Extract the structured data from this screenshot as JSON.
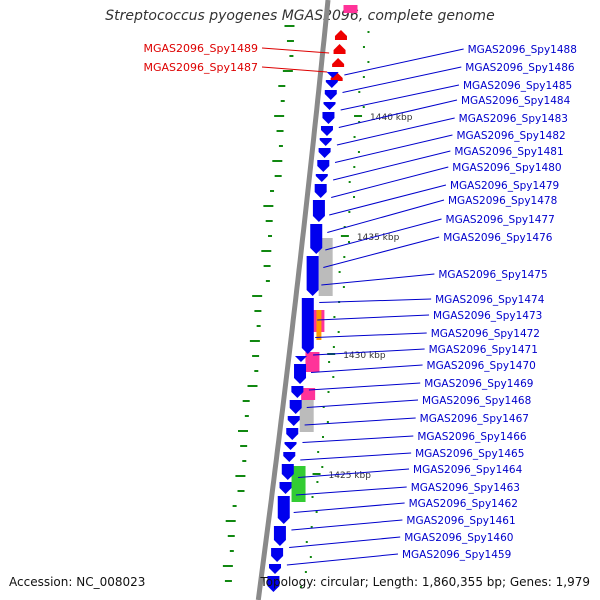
{
  "title": "Streptococcus pyogenes MGAS2096, complete genome",
  "accession_text": "Accession: NC_008023",
  "topology_text": "Topology: circular; Length: 1,860,355 bp; Genes: 1,979",
  "colors": {
    "forward_cds": "#ee0000",
    "reverse_cds": "#0000ee",
    "label_forward": "#dd0000",
    "label_reverse": "#0000cc",
    "backbone": "#8a8a8a",
    "gc_skew": "#118811",
    "cog_pink": "#ff3399",
    "cog_grey": "#bbbbbb",
    "cog_orange": "#ff9900",
    "cog_green": "#33cc33"
  },
  "ticks": [
    {
      "label": "1440 kbp"
    },
    {
      "label": "1435 kbp"
    },
    {
      "label": "1430 kbp"
    },
    {
      "label": "1425 kbp"
    }
  ],
  "left_labels": [
    {
      "text": "MGAS2096_Spy1489"
    },
    {
      "text": "MGAS2096_Spy1487"
    }
  ],
  "right_labels": [
    {
      "text": "MGAS2096_Spy1488"
    },
    {
      "text": "MGAS2096_Spy1486"
    },
    {
      "text": "MGAS2096_Spy1485"
    },
    {
      "text": "MGAS2096_Spy1484"
    },
    {
      "text": "MGAS2096_Spy1483"
    },
    {
      "text": "MGAS2096_Spy1482"
    },
    {
      "text": "MGAS2096_Spy1481"
    },
    {
      "text": "MGAS2096_Spy1480"
    },
    {
      "text": "MGAS2096_Spy1479"
    },
    {
      "text": "MGAS2096_Spy1478"
    },
    {
      "text": "MGAS2096_Spy1477"
    },
    {
      "text": "MGAS2096_Spy1476"
    },
    {
      "text": "MGAS2096_Spy1475"
    },
    {
      "text": "MGAS2096_Spy1474"
    },
    {
      "text": "MGAS2096_Spy1473"
    },
    {
      "text": "MGAS2096_Spy1472"
    },
    {
      "text": "MGAS2096_Spy1471"
    },
    {
      "text": "MGAS2096_Spy1470"
    },
    {
      "text": "MGAS2096_Spy1469"
    },
    {
      "text": "MGAS2096_Spy1468"
    },
    {
      "text": "MGAS2096_Spy1467"
    },
    {
      "text": "MGAS2096_Spy1466"
    },
    {
      "text": "MGAS2096_Spy1465"
    },
    {
      "text": "MGAS2096_Spy1464"
    },
    {
      "text": "MGAS2096_Spy1463"
    },
    {
      "text": "MGAS2096_Spy1462"
    },
    {
      "text": "MGAS2096_Spy1461"
    },
    {
      "text": "MGAS2096_Spy1460"
    },
    {
      "text": "MGAS2096_Spy1459"
    }
  ]
}
